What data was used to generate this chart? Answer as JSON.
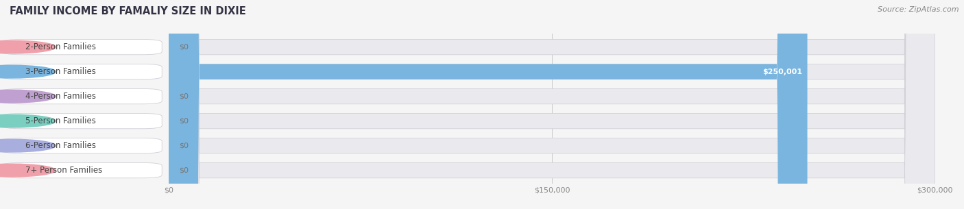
{
  "title": "FAMILY INCOME BY FAMALIY SIZE IN DIXIE",
  "source": "Source: ZipAtlas.com",
  "categories": [
    "2-Person Families",
    "3-Person Families",
    "4-Person Families",
    "5-Person Families",
    "6-Person Families",
    "7+ Person Families"
  ],
  "values": [
    0,
    250001,
    0,
    0,
    0,
    0
  ],
  "bar_colors": [
    "#f0a0aa",
    "#7ab5df",
    "#c0a0d0",
    "#7acfc0",
    "#a8aedd",
    "#f0a0aa"
  ],
  "xlim": [
    0,
    300000
  ],
  "xticks": [
    0,
    150000,
    300000
  ],
  "xtick_labels": [
    "$0",
    "$150,000",
    "$300,000"
  ],
  "background_color": "#f5f5f5",
  "bar_bg_color": "#eaeaee",
  "title_fontsize": 10.5,
  "source_fontsize": 8,
  "label_fontsize": 8.5,
  "value_fontsize": 8
}
